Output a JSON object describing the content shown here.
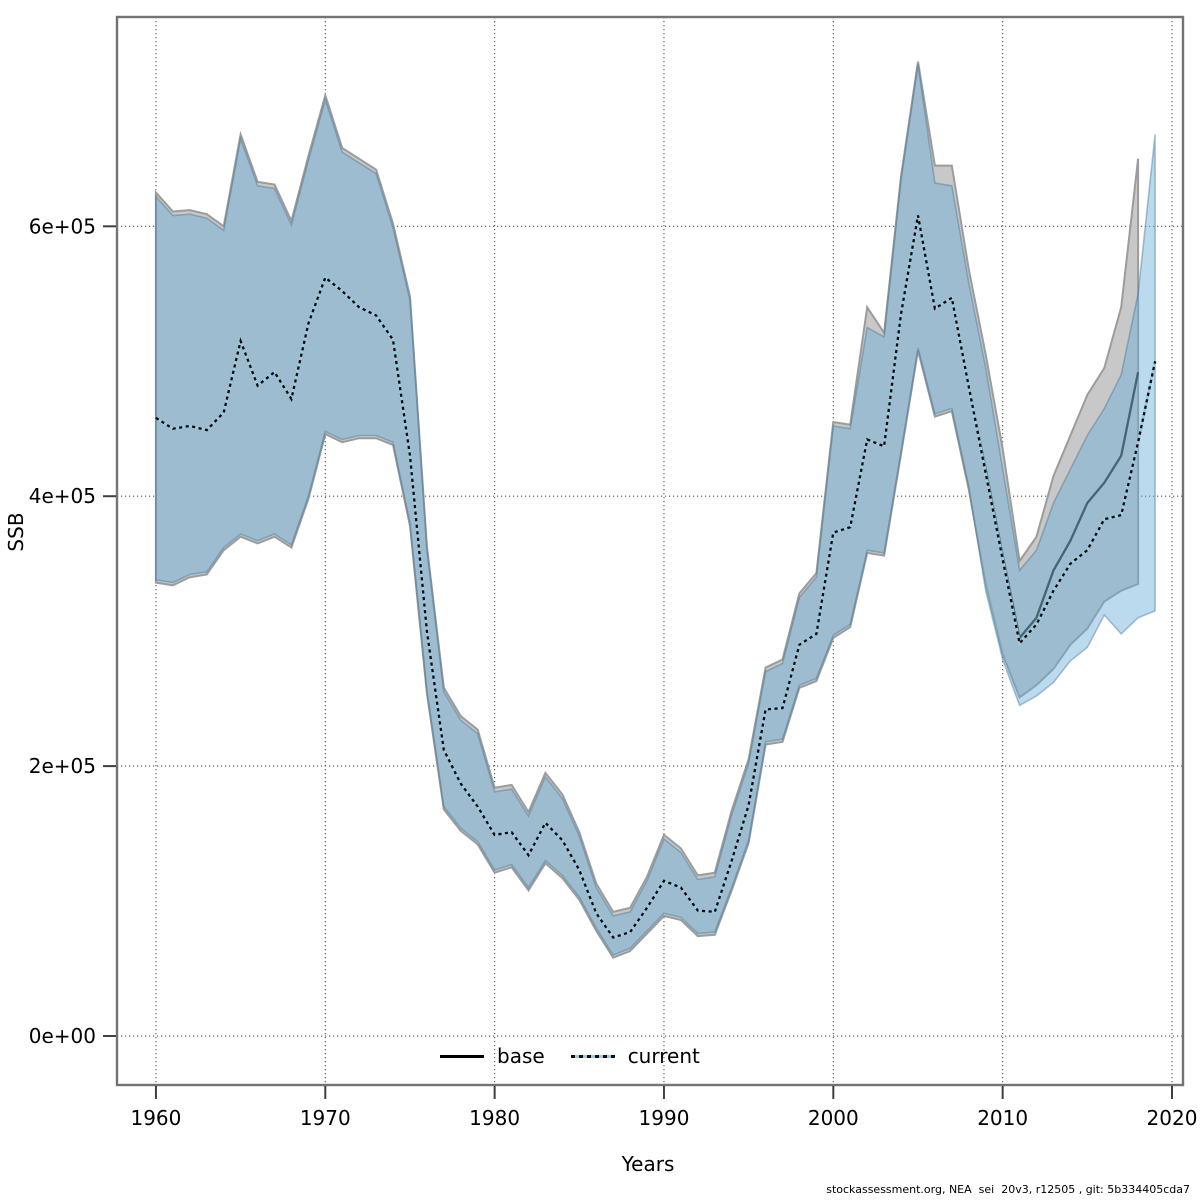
{
  "figure": {
    "y_axis": {
      "label": "SSB",
      "ticks": [
        {
          "label": "0e+00",
          "value": 0
        },
        {
          "label": "2e+05",
          "value": 200000
        },
        {
          "label": "4e+05",
          "value": 400000
        },
        {
          "label": "6e+05",
          "value": 600000
        }
      ]
    },
    "x_axis": {
      "label": "Years",
      "ticks": [
        {
          "label": "1960",
          "value": 1960
        },
        {
          "label": "1970",
          "value": 1970
        },
        {
          "label": "1980",
          "value": 1980
        },
        {
          "label": "1990",
          "value": 1990
        },
        {
          "label": "2000",
          "value": 2000
        },
        {
          "label": "2010",
          "value": 2010
        },
        {
          "label": "2020",
          "value": 2020
        }
      ]
    },
    "legend": {
      "items": [
        {
          "label": "base",
          "line_style": "solid",
          "color": "#000000"
        },
        {
          "label": "current",
          "line_style": "dotted",
          "color": "#9ecae1"
        }
      ]
    },
    "footer": "stockassessment.org, NEA  sei  20v3, r12505 , git: 5b334405cda7"
  },
  "chart_data": {
    "type": "line",
    "title": "",
    "xlabel": "Years",
    "ylabel": "SSB",
    "xlim": [
      1957.7,
      2020.65
    ],
    "ylim": [
      -36300,
      755100
    ],
    "grid": "dotted, at decade years and at 0/2e5/4e5/6e5",
    "legend_position": "bottom-center-inside",
    "unit_multiplier": 1000,
    "colors": {
      "base_band_fill": "#c8c8c8",
      "base_band_stroke": "#9c9c9c",
      "current_band_fill_rgba": "rgba(107,174,214,0.45)",
      "current_band_stroke_rgba": "rgba(70,120,150,0.45)",
      "base_line": "#456575",
      "current_line_underlay": "#9ecae1",
      "current_line_dash": "#0a0a0a",
      "frame": "#737373",
      "gridline": "#555555",
      "tick": "#404040"
    },
    "series": [
      {
        "name": "base_ci",
        "role": "confidence-band",
        "years": [
          1960,
          1961,
          1962,
          1963,
          1964,
          1965,
          1966,
          1967,
          1968,
          1969,
          1970,
          1971,
          1972,
          1973,
          1974,
          1975,
          1976,
          1977,
          1978,
          1979,
          1980,
          1981,
          1982,
          1983,
          1984,
          1985,
          1986,
          1987,
          1988,
          1989,
          1990,
          1991,
          1992,
          1993,
          1994,
          1995,
          1996,
          1997,
          1998,
          1999,
          2000,
          2001,
          2002,
          2003,
          2004,
          2005,
          2006,
          2007,
          2008,
          2009,
          2010,
          2011,
          2012,
          2013,
          2014,
          2015,
          2016,
          2017,
          2018
        ],
        "lower": [
          336,
          334,
          340,
          342,
          360,
          370,
          365,
          370,
          362,
          398,
          446,
          440,
          443,
          443,
          438,
          378,
          254,
          168,
          152,
          142,
          121,
          125,
          108,
          128,
          117,
          101,
          78,
          58,
          63,
          76,
          89,
          86,
          74,
          75,
          108,
          143,
          216,
          218,
          258,
          263,
          295,
          303,
          358,
          356,
          431,
          508,
          459,
          463,
          405,
          335,
          283,
          251,
          260,
          272,
          290,
          302,
          322,
          330,
          335
        ],
        "upper": [
          625,
          611,
          612,
          609,
          600,
          668,
          633,
          631,
          604,
          652,
          697,
          658,
          650,
          642,
          602,
          548,
          363,
          258,
          237,
          227,
          184,
          186,
          166,
          195,
          179,
          151,
          113,
          92,
          95,
          118,
          149,
          139,
          119,
          121,
          167,
          205,
          273,
          279,
          328,
          343,
          455,
          453,
          540,
          521,
          637,
          722,
          645,
          645,
          568,
          505,
          435,
          352,
          370,
          415,
          445,
          475,
          495,
          540,
          650
        ]
      },
      {
        "name": "current_ci",
        "role": "confidence-band",
        "years": [
          1960,
          1961,
          1962,
          1963,
          1964,
          1965,
          1966,
          1967,
          1968,
          1969,
          1970,
          1971,
          1972,
          1973,
          1974,
          1975,
          1976,
          1977,
          1978,
          1979,
          1980,
          1981,
          1982,
          1983,
          1984,
          1985,
          1986,
          1987,
          1988,
          1989,
          1990,
          1991,
          1992,
          1993,
          1994,
          1995,
          1996,
          1997,
          1998,
          1999,
          2000,
          2001,
          2002,
          2003,
          2004,
          2005,
          2006,
          2007,
          2008,
          2009,
          2010,
          2011,
          2012,
          2013,
          2014,
          2015,
          2016,
          2017,
          2018,
          2019
        ],
        "lower": [
          338,
          336,
          342,
          344,
          362,
          372,
          367,
          372,
          364,
          400,
          448,
          442,
          445,
          445,
          440,
          380,
          256,
          170,
          154,
          144,
          123,
          127,
          110,
          130,
          119,
          103,
          80,
          60,
          65,
          78,
          91,
          88,
          76,
          77,
          110,
          145,
          218,
          220,
          260,
          265,
          297,
          305,
          360,
          358,
          433,
          510,
          461,
          465,
          407,
          330,
          279,
          245,
          252,
          262,
          278,
          288,
          312,
          298,
          310,
          315
        ],
        "upper": [
          622,
          608,
          609,
          606,
          597,
          665,
          630,
          628,
          601,
          649,
          694,
          655,
          647,
          639,
          599,
          545,
          360,
          255,
          234,
          224,
          181,
          183,
          163,
          192,
          176,
          148,
          110,
          89,
          92,
          115,
          146,
          136,
          116,
          118,
          164,
          202,
          270,
          276,
          325,
          340,
          452,
          450,
          525,
          518,
          634,
          720,
          632,
          630,
          558,
          495,
          420,
          345,
          360,
          395,
          420,
          445,
          465,
          490,
          550,
          668
        ]
      },
      {
        "name": "base",
        "role": "median",
        "line": "solid",
        "years": [
          1960,
          1961,
          1962,
          1963,
          1964,
          1965,
          1966,
          1967,
          1968,
          1969,
          1970,
          1971,
          1972,
          1973,
          1974,
          1975,
          1976,
          1977,
          1978,
          1979,
          1980,
          1981,
          1982,
          1983,
          1984,
          1985,
          1986,
          1987,
          1988,
          1989,
          1990,
          1991,
          1992,
          1993,
          1994,
          1995,
          1996,
          1997,
          1998,
          1999,
          2000,
          2001,
          2002,
          2003,
          2004,
          2005,
          2006,
          2007,
          2008,
          2009,
          2010,
          2011,
          2012,
          2013,
          2014,
          2015,
          2016,
          2017,
          2018
        ],
        "values": [
          458,
          450,
          452,
          449,
          462,
          515,
          482,
          492,
          472,
          528,
          562,
          552,
          540,
          534,
          516,
          430,
          300,
          212,
          187,
          170,
          149,
          151,
          134,
          158,
          145,
          123,
          91,
          73,
          77,
          95,
          115,
          110,
          93,
          92,
          130,
          171,
          242,
          243,
          290,
          298,
          373,
          377,
          442,
          437,
          535,
          608,
          539,
          547,
          481,
          420,
          356,
          295,
          310,
          345,
          367,
          395,
          410,
          430,
          492
        ]
      },
      {
        "name": "current",
        "role": "median",
        "line": "dotted",
        "years": [
          1960,
          1961,
          1962,
          1963,
          1964,
          1965,
          1966,
          1967,
          1968,
          1969,
          1970,
          1971,
          1972,
          1973,
          1974,
          1975,
          1976,
          1977,
          1978,
          1979,
          1980,
          1981,
          1982,
          1983,
          1984,
          1985,
          1986,
          1987,
          1988,
          1989,
          1990,
          1991,
          1992,
          1993,
          1994,
          1995,
          1996,
          1997,
          1998,
          1999,
          2000,
          2001,
          2002,
          2003,
          2004,
          2005,
          2006,
          2007,
          2008,
          2009,
          2010,
          2011,
          2012,
          2013,
          2014,
          2015,
          2016,
          2017,
          2018,
          2019
        ],
        "values": [
          458,
          450,
          452,
          449,
          462,
          515,
          482,
          492,
          472,
          528,
          562,
          552,
          540,
          534,
          516,
          430,
          300,
          212,
          187,
          170,
          149,
          151,
          134,
          158,
          145,
          123,
          91,
          73,
          77,
          95,
          115,
          110,
          93,
          92,
          130,
          171,
          242,
          243,
          290,
          298,
          373,
          377,
          442,
          437,
          535,
          608,
          539,
          547,
          481,
          417,
          353,
          291,
          305,
          330,
          350,
          360,
          383,
          386,
          440,
          500
        ]
      }
    ]
  }
}
